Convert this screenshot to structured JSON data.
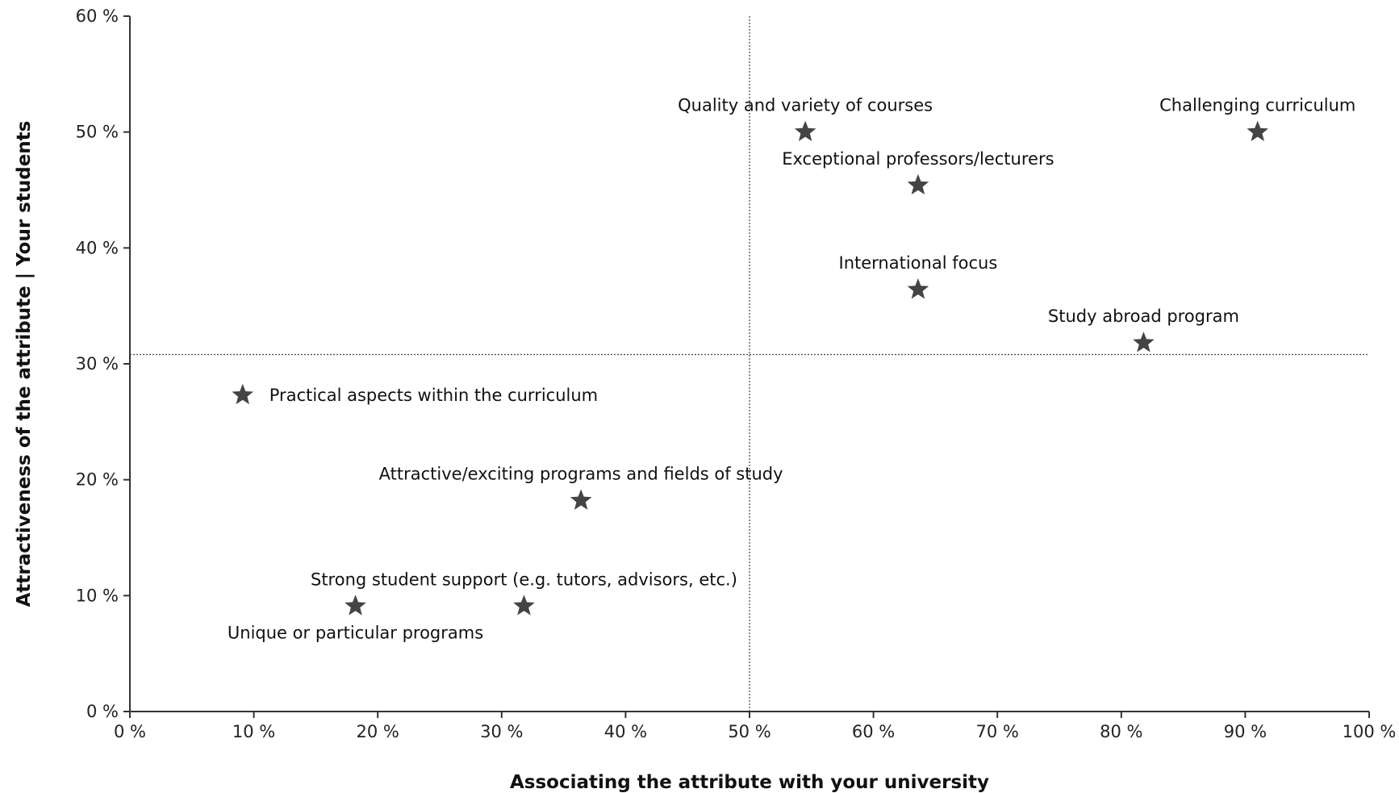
{
  "chart_data": {
    "type": "scatter",
    "title": "",
    "xlabel": "Associating the attribute with your university",
    "ylabel": "Attractiveness of the attribute | Your students",
    "xlim": [
      0,
      100
    ],
    "ylim": [
      0,
      60
    ],
    "x_ticks": [
      "0 %",
      "10 %",
      "20 %",
      "30 %",
      "40 %",
      "50 %",
      "60 %",
      "70 %",
      "80 %",
      "90 %",
      "100 %"
    ],
    "y_ticks": [
      "0 %",
      "10 %",
      "20 %",
      "30 %",
      "40 %",
      "50 %",
      "60 %"
    ],
    "x_tick_values": [
      0,
      10,
      20,
      30,
      40,
      50,
      60,
      70,
      80,
      90,
      100
    ],
    "y_tick_values": [
      0,
      10,
      20,
      30,
      40,
      50,
      60
    ],
    "marker": "star",
    "marker_color": "#444444",
    "reference_lines": {
      "x": 50,
      "y": 30.8
    },
    "grid": false,
    "legend": "none",
    "points": [
      {
        "label": "Quality and variety of courses",
        "x": 54.5,
        "y": 50.0,
        "label_pos": "above"
      },
      {
        "label": "Challenging curriculum",
        "x": 91.0,
        "y": 50.0,
        "label_pos": "above"
      },
      {
        "label": "Exceptional professors/lecturers",
        "x": 63.6,
        "y": 45.4,
        "label_pos": "above"
      },
      {
        "label": "International focus",
        "x": 63.6,
        "y": 36.4,
        "label_pos": "above"
      },
      {
        "label": "Study abroad program",
        "x": 81.8,
        "y": 31.8,
        "label_pos": "above"
      },
      {
        "label": "Practical aspects within the curriculum",
        "x": 9.1,
        "y": 27.3,
        "label_pos": "right"
      },
      {
        "label": "Attractive/exciting programs and fields of study",
        "x": 36.4,
        "y": 18.2,
        "label_pos": "above"
      },
      {
        "label": "Strong student support (e.g. tutors, advisors, etc.)",
        "x": 31.8,
        "y": 9.1,
        "label_pos": "above"
      },
      {
        "label": "Unique or particular programs",
        "x": 18.2,
        "y": 9.1,
        "label_pos": "below"
      }
    ]
  }
}
